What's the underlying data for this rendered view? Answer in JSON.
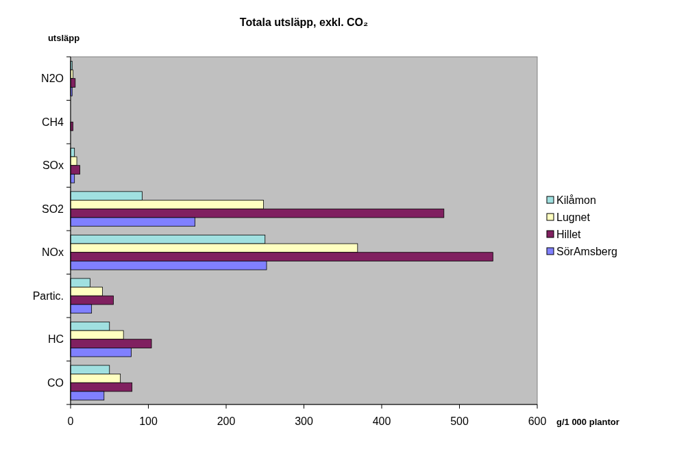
{
  "chart_data": {
    "type": "bar",
    "orientation": "horizontal",
    "title": "Totala utsläpp, exkl. CO₂",
    "ylabel": "utsläpp",
    "xlabel": "g/1 000 plantor",
    "categories": [
      "N2O",
      "CH4",
      "SOx",
      "SO2",
      "NOx",
      "Partic.",
      "HC",
      "CO"
    ],
    "series": [
      {
        "name": "Kilåmon",
        "color": "#a0e0e0",
        "values": [
          2,
          null,
          5,
          92,
          250,
          25,
          50,
          50
        ]
      },
      {
        "name": "Lugnet",
        "color": "#ffffc0",
        "values": [
          3,
          null,
          8,
          248,
          369,
          41,
          68,
          64
        ]
      },
      {
        "name": "Hillet",
        "color": "#802060",
        "values": [
          6,
          3,
          12,
          480,
          543,
          55,
          104,
          79
        ]
      },
      {
        "name": "SörAmsberg",
        "color": "#8080ff",
        "values": [
          2,
          null,
          5,
          160,
          252,
          27,
          78,
          43
        ]
      }
    ],
    "xlim": [
      0,
      600
    ],
    "xticks": [
      0,
      100,
      200,
      300,
      400,
      500,
      600
    ],
    "grid": false,
    "legend": "right"
  }
}
